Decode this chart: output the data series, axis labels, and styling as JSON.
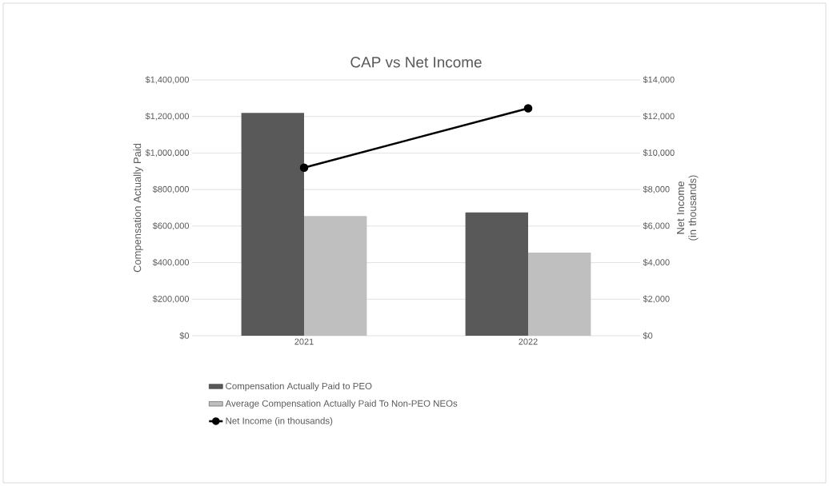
{
  "chart_data": {
    "type": "bar",
    "title": "CAP vs Net Income",
    "ylabel": "Compensation Actually Paid",
    "y2label": "Net Income (in thousands)",
    "categories": [
      "2021",
      "2022"
    ],
    "series": [
      {
        "name": "Compensation Actually Paid to PEO",
        "color": "#595959",
        "values": [
          1220000,
          675000
        ]
      },
      {
        "name": "Average Compensation Actually Paid To Non-PEO NEOs",
        "color": "#bfbfbf",
        "values": [
          655000,
          455000
        ]
      },
      {
        "name": "Net Income (in thousands)",
        "type": "line",
        "axis": "y2",
        "color": "#000000",
        "marker": "circle",
        "line_style": "solid",
        "values": [
          9200,
          12450
        ]
      }
    ],
    "ylim": [
      0,
      1400000
    ],
    "yticks": [
      {
        "value": 0,
        "label": "$0"
      },
      {
        "value": 200000,
        "label": "$200,000"
      },
      {
        "value": 400000,
        "label": "$400,000"
      },
      {
        "value": 600000,
        "label": "$600,000"
      },
      {
        "value": 800000,
        "label": "$800,000"
      },
      {
        "value": 1000000,
        "label": "$1,000,000"
      },
      {
        "value": 1200000,
        "label": "$1,200,000"
      },
      {
        "value": 1400000,
        "label": "$1,400,000"
      }
    ],
    "y2lim": [
      0,
      14000
    ],
    "y2ticks": [
      {
        "value": 0,
        "label": "$0"
      },
      {
        "value": 2000,
        "label": "$2,000"
      },
      {
        "value": 4000,
        "label": "$4,000"
      },
      {
        "value": 6000,
        "label": "$6,000"
      },
      {
        "value": 8000,
        "label": "$8,000"
      },
      {
        "value": 10000,
        "label": "$10,000"
      },
      {
        "value": 12000,
        "label": "$12,000"
      },
      {
        "value": 14000,
        "label": "$14,000"
      }
    ],
    "grid": "y",
    "legend": "bottom"
  }
}
